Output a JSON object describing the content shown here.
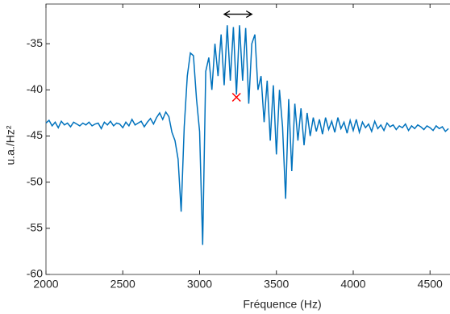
{
  "chart_data": {
    "type": "line",
    "xlabel": "Fréquence (Hz)",
    "ylabel": "u.a./Hz²",
    "xlim": [
      2000,
      4630
    ],
    "ylim": [
      -60,
      -30.7
    ],
    "xticks": [
      2000,
      2500,
      3000,
      3500,
      4000,
      4500
    ],
    "yticks": [
      -60,
      -55,
      -50,
      -45,
      -40,
      -35
    ],
    "grid": false,
    "x": [
      2000,
      2020,
      2040,
      2060,
      2080,
      2100,
      2120,
      2140,
      2160,
      2180,
      2200,
      2220,
      2240,
      2260,
      2280,
      2300,
      2320,
      2340,
      2360,
      2380,
      2400,
      2420,
      2440,
      2460,
      2480,
      2500,
      2520,
      2540,
      2560,
      2580,
      2600,
      2620,
      2640,
      2660,
      2680,
      2700,
      2720,
      2740,
      2760,
      2780,
      2800,
      2820,
      2840,
      2860,
      2880,
      2900,
      2920,
      2940,
      2960,
      2980,
      3000,
      3020,
      3040,
      3060,
      3080,
      3100,
      3120,
      3140,
      3160,
      3180,
      3200,
      3220,
      3240,
      3260,
      3280,
      3300,
      3320,
      3340,
      3360,
      3380,
      3400,
      3420,
      3440,
      3460,
      3480,
      3500,
      3520,
      3540,
      3560,
      3580,
      3600,
      3620,
      3640,
      3660,
      3680,
      3700,
      3720,
      3740,
      3760,
      3780,
      3800,
      3820,
      3840,
      3860,
      3880,
      3900,
      3920,
      3940,
      3960,
      3980,
      4000,
      4020,
      4040,
      4060,
      4080,
      4100,
      4120,
      4140,
      4160,
      4180,
      4200,
      4220,
      4240,
      4260,
      4280,
      4300,
      4320,
      4340,
      4360,
      4380,
      4400,
      4420,
      4440,
      4460,
      4480,
      4500,
      4520,
      4540,
      4560,
      4580,
      4600,
      4620
    ],
    "series": [
      {
        "color": "#0072bd",
        "values": [
          -43.6,
          -43.3,
          -43.9,
          -43.5,
          -44.1,
          -43.4,
          -43.8,
          -43.6,
          -44.0,
          -43.5,
          -43.7,
          -43.9,
          -43.6,
          -43.8,
          -43.5,
          -43.9,
          -43.7,
          -43.6,
          -44.2,
          -43.5,
          -43.8,
          -43.4,
          -43.9,
          -43.6,
          -43.7,
          -44.1,
          -43.5,
          -43.9,
          -43.2,
          -43.8,
          -43.6,
          -43.4,
          -44.0,
          -43.5,
          -43.1,
          -43.7,
          -43.0,
          -42.5,
          -43.2,
          -42.4,
          -42.9,
          -44.6,
          -45.5,
          -47.5,
          -53.2,
          -44.0,
          -38.5,
          -36.0,
          -36.3,
          -41.0,
          -44.5,
          -56.8,
          -38.0,
          -36.5,
          -40.0,
          -35.0,
          -38.5,
          -34.0,
          -39.5,
          -33.0,
          -39.0,
          -33.2,
          -40.5,
          -33.0,
          -39.0,
          -33.3,
          -41.5,
          -35.0,
          -34.0,
          -40.0,
          -38.5,
          -43.5,
          -39.0,
          -45.5,
          -39.5,
          -47.0,
          -40.0,
          -44.0,
          -51.8,
          -41.0,
          -48.8,
          -41.5,
          -45.5,
          -42.0,
          -46.0,
          -42.5,
          -45.0,
          -43.0,
          -44.5,
          -43.2,
          -44.8,
          -43.0,
          -44.3,
          -43.4,
          -44.6,
          -43.0,
          -44.2,
          -43.5,
          -44.7,
          -43.3,
          -44.4,
          -43.2,
          -44.6,
          -43.5,
          -44.1,
          -43.7,
          -44.5,
          -43.4,
          -44.2,
          -43.8,
          -44.4,
          -43.6,
          -44.0,
          -43.8,
          -44.3,
          -43.9,
          -44.1,
          -43.7,
          -44.4,
          -43.9,
          -44.2,
          -43.8,
          -44.0,
          -44.3,
          -43.9,
          -44.1,
          -44.4,
          -43.9,
          -44.2,
          -44.0,
          -44.5,
          -44.2
        ]
      }
    ],
    "marker": {
      "x": 3240,
      "y": -40.8,
      "color": "#ff0000"
    },
    "arrow": {
      "x": [
        3160,
        3340
      ],
      "y": -31.8,
      "color": "#000000"
    }
  }
}
